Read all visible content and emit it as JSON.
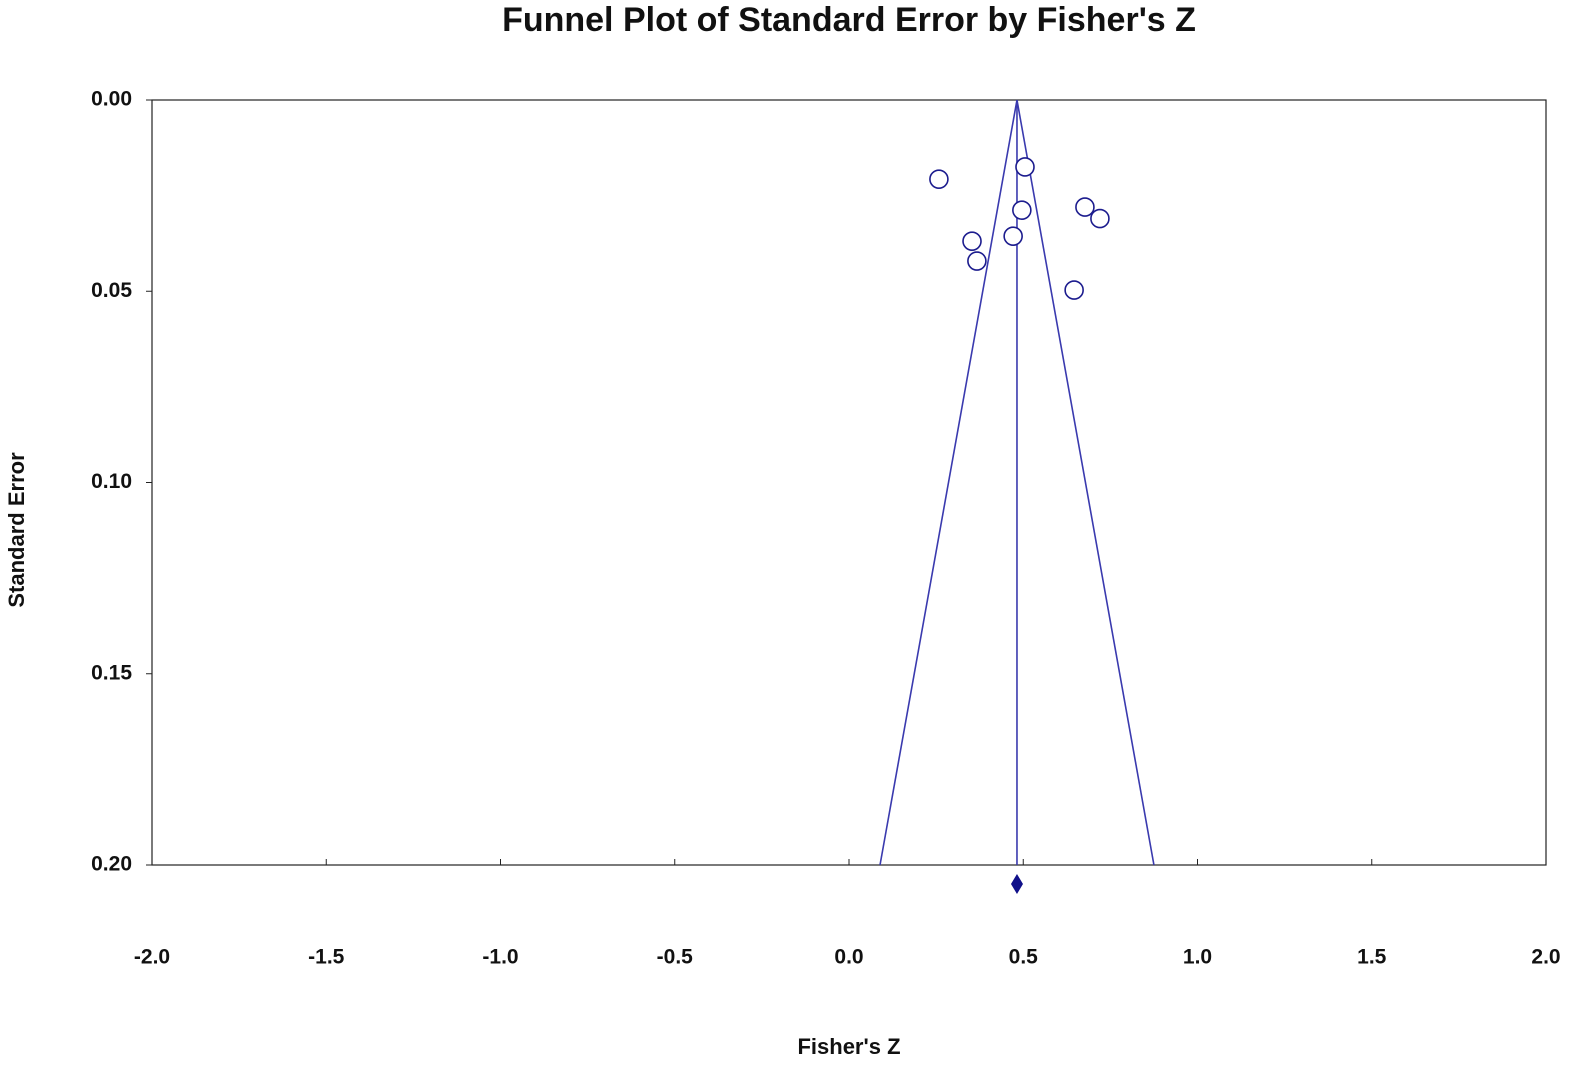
{
  "chart_data": {
    "type": "scatter",
    "title": "Funnel Plot of Standard Error by Fisher's Z",
    "x_label": "Fisher's Z",
    "y_label": "Standard Error",
    "x": [
      0.258,
      0.505,
      0.496,
      0.677,
      0.72,
      0.353,
      0.471,
      0.367,
      0.646
    ],
    "values": [
      0.0207,
      0.0175,
      0.0288,
      0.028,
      0.031,
      0.0369,
      0.0356,
      0.0421,
      0.0497
    ],
    "color": "#1c1c8e",
    "xlim": [
      -2,
      2
    ],
    "xticks": [
      {
        "value": -2,
        "label": "-2.0"
      },
      {
        "value": -1.5,
        "label": "-1.5"
      },
      {
        "value": -1,
        "label": "-1.0"
      },
      {
        "value": -0.5,
        "label": "-0.5"
      },
      {
        "value": 0,
        "label": "0.0"
      },
      {
        "value": 0.5,
        "label": "0.5"
      },
      {
        "value": 1,
        "label": "1.0"
      },
      {
        "value": 1.5,
        "label": "1.5"
      },
      {
        "value": 2,
        "label": "2.0"
      }
    ],
    "ylim": [
      0,
      0.2
    ],
    "y_inverted": true,
    "yticks": [
      {
        "value": 0,
        "label": "0.00"
      },
      {
        "value": 0.05,
        "label": "0.05"
      },
      {
        "value": 0.1,
        "label": "0.10"
      },
      {
        "value": 0.15,
        "label": "0.15"
      },
      {
        "value": 0.2,
        "label": "0.20"
      }
    ],
    "summary_estimate": 0.482,
    "funnel": {
      "apex": [
        0.482,
        0
      ],
      "left": [
        0.089,
        0.2
      ],
      "right": [
        0.875,
        0.2
      ]
    },
    "line_color": "#3a3aae"
  }
}
